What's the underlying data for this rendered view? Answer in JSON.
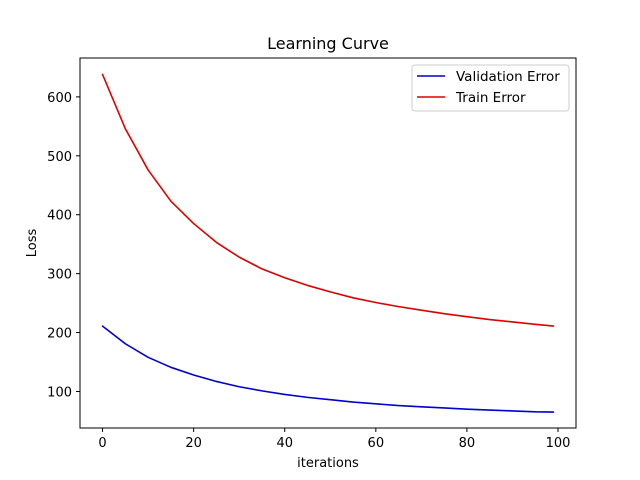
{
  "chart_data": {
    "type": "line",
    "title": "Learning Curve",
    "xlabel": "iterations",
    "ylabel": "Loss",
    "xlim": [
      -4.95,
      103.95
    ],
    "ylim": [
      38,
      666
    ],
    "x_ticks": [
      0,
      20,
      40,
      60,
      80,
      100
    ],
    "y_ticks": [
      100,
      200,
      300,
      400,
      500,
      600
    ],
    "grid": false,
    "legend_position": "upper right",
    "series": [
      {
        "name": "Validation Error",
        "color": "#0000cc",
        "x": [
          0,
          5,
          10,
          15,
          20,
          25,
          30,
          35,
          40,
          45,
          50,
          55,
          60,
          65,
          70,
          75,
          80,
          85,
          90,
          95,
          99
        ],
        "values": [
          211,
          181,
          158,
          141,
          128,
          117,
          108,
          101,
          95,
          90,
          86,
          82,
          79,
          76,
          74,
          72,
          70,
          68.5,
          67,
          65.5,
          65
        ]
      },
      {
        "name": "Train Error",
        "color": "#dd0000",
        "x": [
          0,
          5,
          10,
          15,
          20,
          25,
          30,
          35,
          40,
          45,
          50,
          55,
          60,
          65,
          70,
          75,
          80,
          85,
          90,
          95,
          99
        ],
        "values": [
          638,
          546,
          476,
          423,
          385,
          353,
          328,
          308,
          293,
          280,
          269,
          259,
          251,
          244,
          238,
          232,
          227,
          222,
          218,
          214,
          211
        ]
      }
    ]
  }
}
